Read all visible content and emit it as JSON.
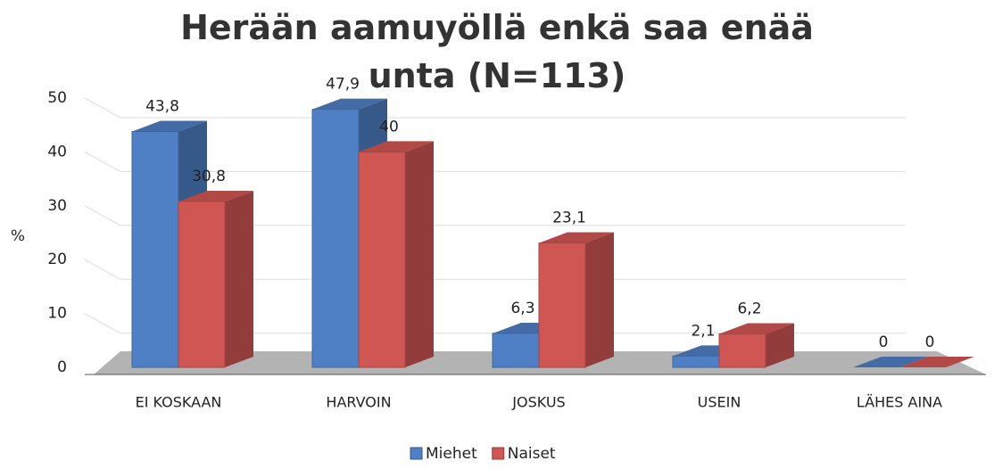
{
  "chart_data": {
    "type": "bar3d",
    "title": "Herään aamuyöllä enkä saa enää unta (N=113)",
    "ylabel": "%",
    "categories": [
      "EI KOSKAAN",
      "HARVOIN",
      "JOSKUS",
      "USEIN",
      "LÄHES AINA"
    ],
    "series": [
      {
        "name": "Miehet",
        "color": "#4f7fc4",
        "values": [
          43.8,
          47.9,
          6.3,
          2.1,
          0
        ],
        "value_labels": [
          "43,8",
          "47,9",
          "6,3",
          "2,1",
          "0"
        ]
      },
      {
        "name": "Naiset",
        "color": "#d05654",
        "values": [
          30.8,
          40,
          23.1,
          6.2,
          0
        ],
        "value_labels": [
          "30,8",
          "40",
          "23,1",
          "6,2",
          "0"
        ]
      }
    ],
    "ylim": [
      0,
      50
    ],
    "yticks": [
      0,
      10,
      20,
      30,
      40,
      50
    ],
    "grid": true,
    "legend": "bottom"
  }
}
